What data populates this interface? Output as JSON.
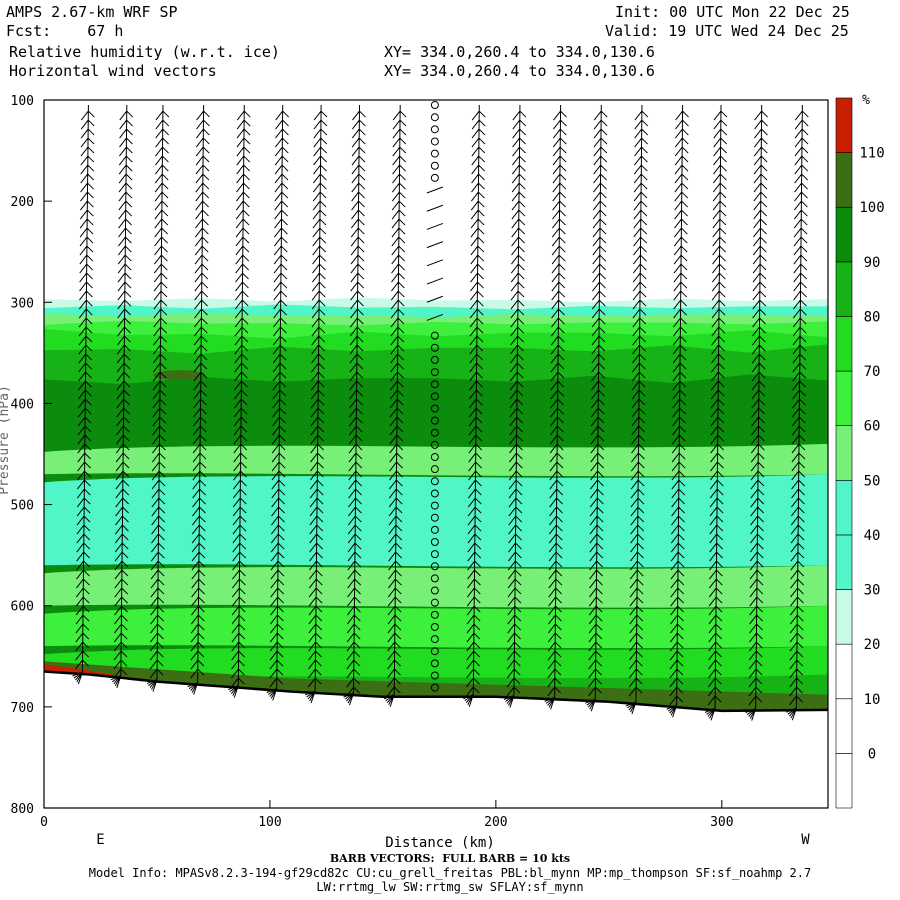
{
  "header": {
    "title": "AMPS 2.67-km WRF SP",
    "forecast": "Fcst:    67 h",
    "field1": "Relative humidity (w.r.t. ice)",
    "field2": "Horizontal wind vectors",
    "init": "Init: 00 UTC Mon 22 Dec 25",
    "valid": "Valid: 19 UTC Wed 24 Dec 25",
    "xy1": "XY= 334.0,260.4 to 334.0,130.6",
    "xy2": "XY= 334.0,260.4 to 334.0,130.6"
  },
  "footer": {
    "barb_note": "BARB VECTORS:  FULL BARB = 10 kts",
    "model_info": "Model Info: MPASv8.2.3-194-gf29cd82c CU:cu_grell_freitas PBL:bl_mynn MP:mp_thompson SF:sf_noahmp 2.7",
    "model_info2": "LW:rrtmg_lw SW:rrtmg_sw SFLAY:sf_mynn"
  },
  "chart_data": {
    "type": "heatmap",
    "title": "Relative humidity (w.r.t. ice) cross section",
    "xlabel": "Distance (km)",
    "ylabel": "Pressure (hPa)",
    "xlim": [
      0,
      347
    ],
    "ylim": [
      800,
      100
    ],
    "x_ticks": [
      "0",
      "100",
      "200",
      "300"
    ],
    "y_ticks": [
      "100",
      "200",
      "300",
      "400",
      "500",
      "600",
      "700",
      "800"
    ],
    "x_end_labels": {
      "left": "E",
      "right": "W"
    },
    "colorbar": {
      "unit": "%",
      "levels": [
        "0",
        "10",
        "20",
        "30",
        "40",
        "50",
        "60",
        "70",
        "80",
        "90",
        "100",
        "110"
      ],
      "colors": [
        "#ffffff",
        "#ffffff",
        "#ffffff",
        "#c8fae6",
        "#50f5c8",
        "#50f5c8",
        "#78f078",
        "#3cf03c",
        "#22dc22",
        "#16b216",
        "#0c8c0c",
        "#3c6e14",
        "#c82000"
      ]
    },
    "rh_layers": [
      {
        "range_percent": "30-40",
        "p_top_hpa": 297,
        "color": "#c8fae6"
      },
      {
        "range_percent": "40-50",
        "p_top_hpa": 304,
        "color": "#50f5c8"
      },
      {
        "range_percent": "60-70",
        "p_top_hpa": 312,
        "color": "#78f078"
      },
      {
        "range_percent": "70-80",
        "p_top_hpa": 320,
        "color": "#3cf03c"
      },
      {
        "range_percent": "80-90",
        "p_top_hpa": 330,
        "color": "#22dc22"
      },
      {
        "range_percent": "90-100",
        "p_top_hpa": 345,
        "color": "#16b216"
      },
      {
        "range_percent": "100-110",
        "p_top_hpa": 375,
        "color": "#0c8c0c"
      }
    ],
    "terrain_surface_hpa": [
      {
        "x": 0,
        "p": 665
      },
      {
        "x": 20,
        "p": 668
      },
      {
        "x": 50,
        "p": 675
      },
      {
        "x": 80,
        "p": 680
      },
      {
        "x": 110,
        "p": 685
      },
      {
        "x": 150,
        "p": 690
      },
      {
        "x": 200,
        "p": 690
      },
      {
        "x": 250,
        "p": 695
      },
      {
        "x": 300,
        "p": 704
      },
      {
        "x": 347,
        "p": 703
      }
    ],
    "wind_barb_x_km": [
      17,
      34,
      50,
      68,
      86,
      103,
      120,
      137,
      155,
      173,
      190,
      208,
      226,
      244,
      262,
      280,
      297,
      315,
      333
    ],
    "calm_column_x_km": 173,
    "barb_unit": "FULL BARB = 10 kts"
  }
}
